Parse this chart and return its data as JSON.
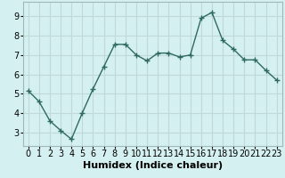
{
  "x": [
    0,
    1,
    2,
    3,
    4,
    5,
    6,
    7,
    8,
    9,
    10,
    11,
    12,
    13,
    14,
    15,
    16,
    17,
    18,
    19,
    20,
    21,
    22,
    23
  ],
  "y": [
    5.15,
    4.6,
    3.6,
    3.1,
    2.65,
    4.0,
    5.25,
    6.4,
    7.55,
    7.55,
    7.0,
    6.7,
    7.1,
    7.1,
    6.9,
    7.0,
    8.9,
    9.2,
    7.75,
    7.3,
    6.75,
    6.75,
    6.2,
    5.7
  ],
  "xlabel": "Humidex (Indice chaleur)",
  "xlim": [
    -0.5,
    23.5
  ],
  "ylim": [
    2.3,
    9.75
  ],
  "yticks": [
    3,
    4,
    5,
    6,
    7,
    8,
    9
  ],
  "xticks": [
    0,
    1,
    2,
    3,
    4,
    5,
    6,
    7,
    8,
    9,
    10,
    11,
    12,
    13,
    14,
    15,
    16,
    17,
    18,
    19,
    20,
    21,
    22,
    23
  ],
  "line_color": "#2e6b5e",
  "marker": "+",
  "bg_color": "#d5f0f0",
  "grid_color": "#c0d8d8",
  "label_fontsize": 8,
  "tick_fontsize": 7
}
